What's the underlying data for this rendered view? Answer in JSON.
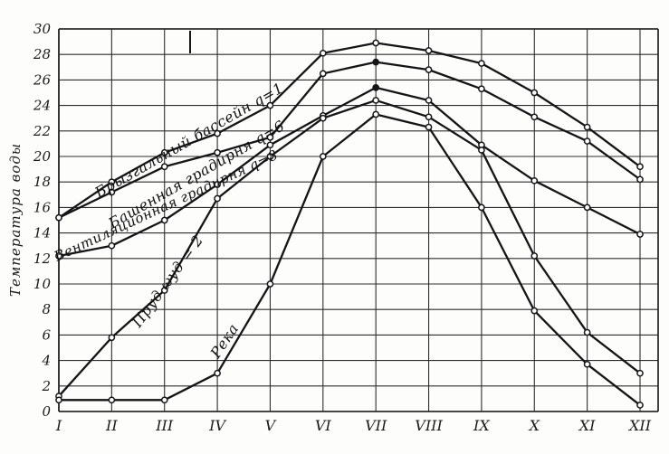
{
  "figure": {
    "y_axis_title": "Температура воды",
    "y_ticks": [
      "0",
      "2",
      "4",
      "6",
      "8",
      "10",
      "12",
      "14",
      "16",
      "18",
      "20",
      "22",
      "24",
      "26",
      "28",
      "30"
    ],
    "x_ticks": [
      "I",
      "II",
      "III",
      "IV",
      "V",
      "VI",
      "VII",
      "VIII",
      "IX",
      "X",
      "XI",
      "XII"
    ]
  },
  "chart_data": {
    "type": "line",
    "title": "",
    "xlabel": "",
    "ylabel": "Температура воды",
    "x_categories": [
      "I",
      "II",
      "III",
      "IV",
      "V",
      "VI",
      "VII",
      "VIII",
      "IX",
      "X",
      "XI",
      "XII"
    ],
    "ylim": [
      0,
      30
    ],
    "y_tick_step": 2,
    "grid": true,
    "legend_position": "labels-along-curves",
    "line_color": "#151515",
    "background_color": "#fdfdfb",
    "series": [
      {
        "name": "Брызгальный бассейн q=1",
        "values": [
          15.2,
          18.0,
          20.3,
          21.8,
          24.0,
          28.1,
          28.9,
          28.3,
          27.3,
          25.0,
          22.3,
          19.2
        ],
        "marker": "circle-open",
        "filled_point_indices": []
      },
      {
        "name": "Башенная градирня q=6",
        "values": [
          15.2,
          17.2,
          19.2,
          20.3,
          21.5,
          26.5,
          27.4,
          26.8,
          25.3,
          23.1,
          21.2,
          18.2
        ],
        "marker": "circle-open",
        "filled_point_indices": [
          6
        ]
      },
      {
        "name": "Вентиляционная градирня q=8",
        "values": [
          12.2,
          13.0,
          15.0,
          17.8,
          20.9,
          23.2,
          25.4,
          24.4,
          20.9,
          18.1,
          16.0,
          13.9
        ],
        "marker": "circle-open",
        "filled_point_indices": [
          6
        ]
      },
      {
        "name": "Пруд ωуд = 2",
        "values": [
          1.2,
          5.8,
          9.5,
          16.7,
          20.0,
          23.0,
          24.4,
          23.1,
          20.5,
          12.2,
          6.2,
          3.0
        ],
        "marker": "circle-open",
        "filled_point_indices": []
      },
      {
        "name": "Река",
        "values": [
          0.9,
          0.9,
          0.9,
          3.0,
          10.0,
          20.0,
          23.3,
          22.3,
          16.0,
          7.9,
          3.7,
          0.5
        ],
        "marker": "circle-open",
        "filled_point_indices": []
      }
    ]
  }
}
